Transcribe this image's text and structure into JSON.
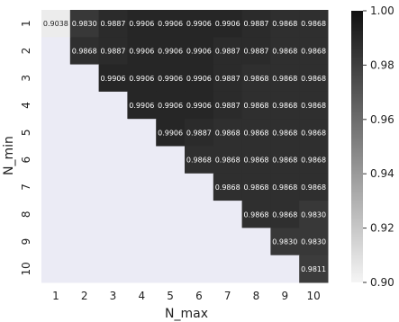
{
  "chart_data": {
    "type": "heatmap",
    "title": "",
    "xlabel": "N_max",
    "ylabel": "N_min",
    "x_categories": [
      "1",
      "2",
      "3",
      "4",
      "5",
      "6",
      "7",
      "8",
      "9",
      "10"
    ],
    "y_categories": [
      "1",
      "2",
      "3",
      "4",
      "5",
      "6",
      "7",
      "8",
      "9",
      "10"
    ],
    "values": [
      [
        0.9038,
        0.983,
        0.9887,
        0.9906,
        0.9906,
        0.9906,
        0.9906,
        0.9887,
        0.9868,
        0.9868
      ],
      [
        null,
        0.9868,
        0.9887,
        0.9906,
        0.9906,
        0.9906,
        0.9887,
        0.9887,
        0.9868,
        0.9868
      ],
      [
        null,
        null,
        0.9906,
        0.9906,
        0.9906,
        0.9906,
        0.9887,
        0.9868,
        0.9868,
        0.9868
      ],
      [
        null,
        null,
        null,
        0.9906,
        0.9906,
        0.9906,
        0.9887,
        0.9868,
        0.9868,
        0.9868
      ],
      [
        null,
        null,
        null,
        null,
        0.9906,
        0.9887,
        0.9868,
        0.9868,
        0.9868,
        0.9868
      ],
      [
        null,
        null,
        null,
        null,
        null,
        0.9868,
        0.9868,
        0.9868,
        0.9868,
        0.9868
      ],
      [
        null,
        null,
        null,
        null,
        null,
        null,
        0.9868,
        0.9868,
        0.9868,
        0.9868
      ],
      [
        null,
        null,
        null,
        null,
        null,
        null,
        null,
        0.9868,
        0.9868,
        0.983
      ],
      [
        null,
        null,
        null,
        null,
        null,
        null,
        null,
        null,
        0.983,
        0.983
      ],
      [
        null,
        null,
        null,
        null,
        null,
        null,
        null,
        null,
        null,
        0.9811
      ]
    ],
    "value_labels": [
      [
        "0.9038",
        "0.9830",
        "0.9887",
        "0.9906",
        "0.9906",
        "0.9906",
        "0.9906",
        "0.9887",
        "0.9868",
        "0.9868"
      ],
      [
        "",
        "0.9868",
        "0.9887",
        "0.9906",
        "0.9906",
        "0.9906",
        "0.9887",
        "0.9887",
        "0.9868",
        "0.9868"
      ],
      [
        "",
        "",
        "0.9906",
        "0.9906",
        "0.9906",
        "0.9906",
        "0.9887",
        "0.9868",
        "0.9868",
        "0.9868"
      ],
      [
        "",
        "",
        "",
        "0.9906",
        "0.9906",
        "0.9906",
        "0.9887",
        "0.9868",
        "0.9868",
        "0.9868"
      ],
      [
        "",
        "",
        "",
        "",
        "0.9906",
        "0.9887",
        "0.9868",
        "0.9868",
        "0.9868",
        "0.9868"
      ],
      [
        "",
        "",
        "",
        "",
        "",
        "0.9868",
        "0.9868",
        "0.9868",
        "0.9868",
        "0.9868"
      ],
      [
        "",
        "",
        "",
        "",
        "",
        "",
        "0.9868",
        "0.9868",
        "0.9868",
        "0.9868"
      ],
      [
        "",
        "",
        "",
        "",
        "",
        "",
        "",
        "0.9868",
        "0.9868",
        "0.9830"
      ],
      [
        "",
        "",
        "",
        "",
        "",
        "",
        "",
        "",
        "0.9830",
        "0.9830"
      ],
      [
        "",
        "",
        "",
        "",
        "",
        "",
        "",
        "",
        "",
        "0.9811"
      ]
    ],
    "masked_fill": "#ebebf5",
    "colorbar": {
      "vmin": 0.9,
      "vmax": 1.0,
      "ticks": [
        0.9,
        0.92,
        0.94,
        0.96,
        0.98,
        1.0
      ],
      "tick_labels": [
        "0.90",
        "0.92",
        "0.94",
        "0.96",
        "0.98",
        "1.00"
      ],
      "colormap": [
        "#f5f5f5",
        "#111111"
      ]
    },
    "grid": false
  }
}
